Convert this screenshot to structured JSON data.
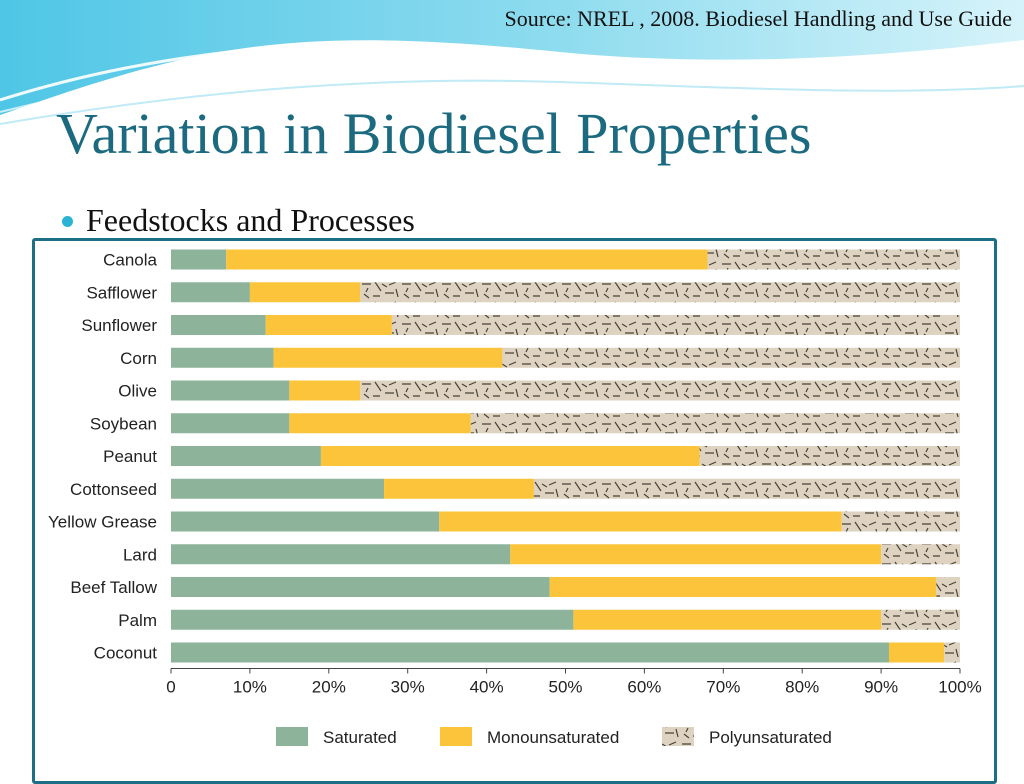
{
  "source": "Source: NREL , 2008. Biodiesel Handling and Use Guide",
  "title": "Variation in Biodiesel Properties",
  "bullet": "Feedstocks and Processes",
  "colors": {
    "saturated": "#8db39b",
    "monounsaturated": "#fcc43a",
    "polyunsaturated": "#ddd3c0",
    "polyunsaturated_hatch": "#4a4239",
    "title": "#1c6a80",
    "frame": "#1d6f86",
    "bullet": "#2bb3d3"
  },
  "chart_data": {
    "type": "bar",
    "orientation": "horizontal",
    "stacked": true,
    "categories": [
      "Canola",
      "Safflower",
      "Sunflower",
      "Corn",
      "Olive",
      "Soybean",
      "Peanut",
      "Cottonseed",
      "Yellow Grease",
      "Lard",
      "Beef Tallow",
      "Palm",
      "Coconut"
    ],
    "series": [
      {
        "name": "Saturated",
        "values": [
          7,
          10,
          12,
          13,
          15,
          15,
          19,
          27,
          34,
          43,
          48,
          51,
          91
        ]
      },
      {
        "name": "Monounsaturated",
        "values": [
          61,
          14,
          16,
          29,
          9,
          23,
          48,
          19,
          51,
          47,
          49,
          39,
          7
        ]
      },
      {
        "name": "Polyunsaturated",
        "values": [
          32,
          76,
          72,
          58,
          76,
          62,
          33,
          54,
          15,
          10,
          3,
          10,
          2
        ]
      }
    ],
    "xlim": [
      0,
      100
    ],
    "x_ticks": [
      "0",
      "10%",
      "20%",
      "30%",
      "40%",
      "50%",
      "60%",
      "70%",
      "80%",
      "90%",
      "100%"
    ],
    "legend_position": "bottom",
    "grid": false
  }
}
